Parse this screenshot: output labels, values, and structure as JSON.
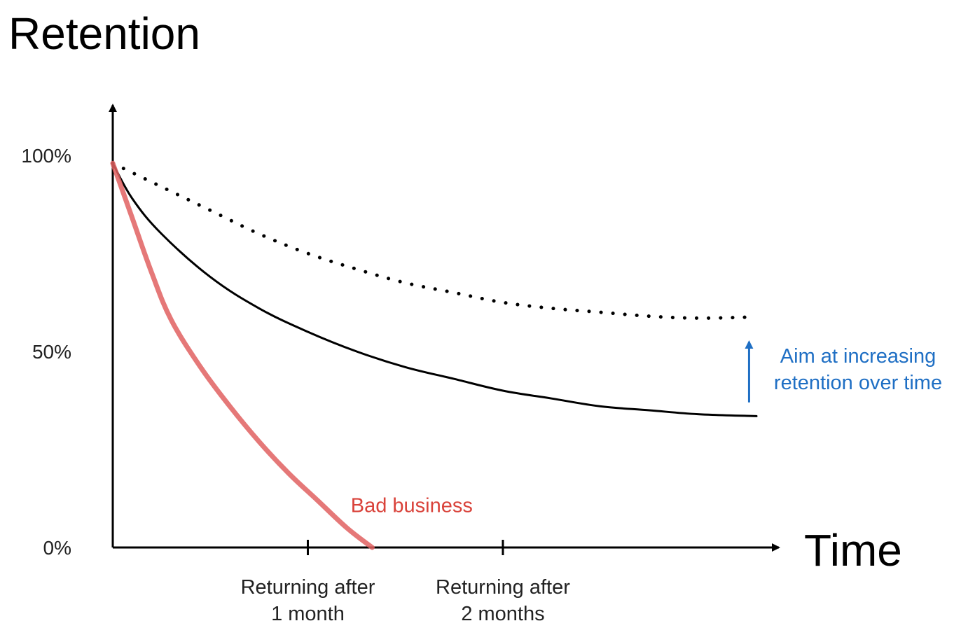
{
  "chart_data": {
    "type": "line",
    "title": "Retention",
    "xlabel": "Time",
    "ylabel": "",
    "ylim": [
      0,
      100
    ],
    "xlim": [
      0,
      3.3
    ],
    "x_ticks": [
      {
        "value": 1,
        "label_lines": [
          "Returning after",
          "1 month"
        ]
      },
      {
        "value": 2,
        "label_lines": [
          "Returning after",
          "2 months"
        ]
      }
    ],
    "y_ticks": [
      {
        "value": 100,
        "label": "100%"
      },
      {
        "value": 50,
        "label": "50%"
      },
      {
        "value": 0,
        "label": "0%"
      }
    ],
    "grid": false,
    "legend": "none",
    "series": [
      {
        "style": "solid",
        "color": "#000000",
        "x": [
          0,
          0.1,
          0.25,
          0.5,
          0.75,
          1.0,
          1.25,
          1.5,
          1.75,
          2.0,
          2.25,
          2.5,
          2.75,
          3.0,
          3.3
        ],
        "y": [
          98,
          89,
          80,
          69,
          61,
          55,
          50,
          46,
          43,
          40,
          38,
          36,
          35,
          34,
          33.5
        ]
      },
      {
        "style": "dotted",
        "color": "#000000",
        "x": [
          0,
          0.25,
          0.5,
          0.75,
          1.0,
          1.25,
          1.5,
          1.75,
          2.0,
          2.25,
          2.5,
          2.75,
          3.0,
          3.3
        ],
        "y": [
          98,
          92,
          86,
          80,
          75,
          71,
          67.5,
          65,
          62.5,
          61,
          60,
          59,
          58.5,
          58.8
        ]
      },
      {
        "name": "Bad business",
        "style": "solid",
        "color": "#e06060",
        "x": [
          0,
          0.1,
          0.2,
          0.3,
          0.45,
          0.6,
          0.75,
          0.9,
          1.05,
          1.2,
          1.33
        ],
        "y": [
          98,
          84,
          70,
          58,
          46,
          36,
          27,
          19,
          12,
          5,
          0
        ]
      }
    ],
    "annotations": [
      {
        "text": "Bad business",
        "color": "#d9423a",
        "anchor_x": 1.22,
        "anchor_y": 9
      },
      {
        "text_lines": [
          "Aim at increasing",
          "retention over time"
        ],
        "color": "#1f6fc4",
        "arrow_x": 3.28,
        "arrow_from_y": 37,
        "arrow_to_y": 55
      }
    ]
  }
}
